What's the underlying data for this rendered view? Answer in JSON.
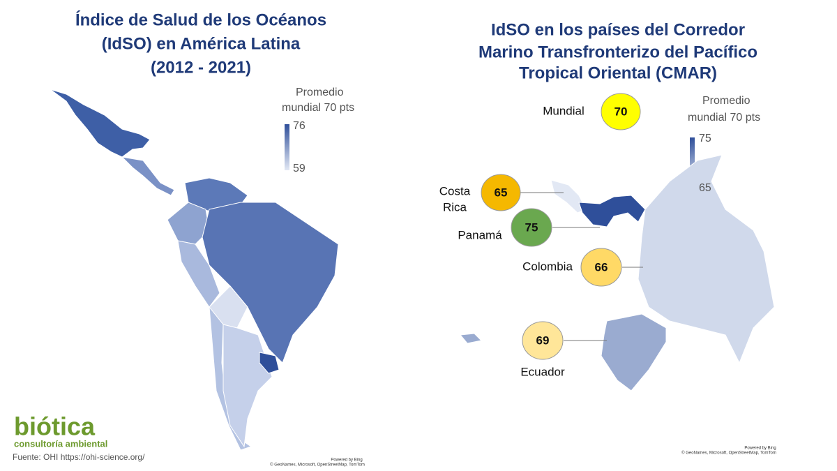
{
  "left": {
    "title_lines": [
      "Índice de Salud de los Océanos",
      "(IdSO) en América Latina",
      "(2012 - 2021)"
    ],
    "legend": {
      "title_lines": [
        "Promedio",
        "mundial 70 pts"
      ],
      "max": 76,
      "min": 59
    },
    "attribution": [
      "Powered by Bing",
      "© GeoNames, Microsoft, OpenStreetMap, TomTom"
    ]
  },
  "right": {
    "title_lines": [
      "IdSO en los países del Corredor",
      "Marino Transfronterizo del Pacífico",
      "Tropical Oriental (CMAR)"
    ],
    "legend": {
      "title_lines": [
        "Promedio",
        "mundial 70 pts"
      ],
      "max": 75,
      "min": 65
    },
    "bubbles": [
      {
        "label_lines": [
          "Mundial"
        ],
        "value": 70,
        "color": "#ffff00"
      },
      {
        "label_lines": [
          "Costa",
          "Rica"
        ],
        "value": 65,
        "color": "#f5b800"
      },
      {
        "label_lines": [
          "Panamá"
        ],
        "value": 75,
        "color": "#6aa84f"
      },
      {
        "label_lines": [
          "Colombia"
        ],
        "value": 66,
        "color": "#ffd966"
      },
      {
        "label_lines": [
          "Ecuador"
        ],
        "value": 69,
        "color": "#ffe699"
      }
    ],
    "attribution": [
      "Powered by Bing",
      "© GeoNames, Microsoft, OpenStreetMap, TomTom"
    ]
  },
  "logo": {
    "name": "biótica",
    "tagline": "consultoría ambiental"
  },
  "source": "Fuente: OHI https://ohi-science.org/"
}
